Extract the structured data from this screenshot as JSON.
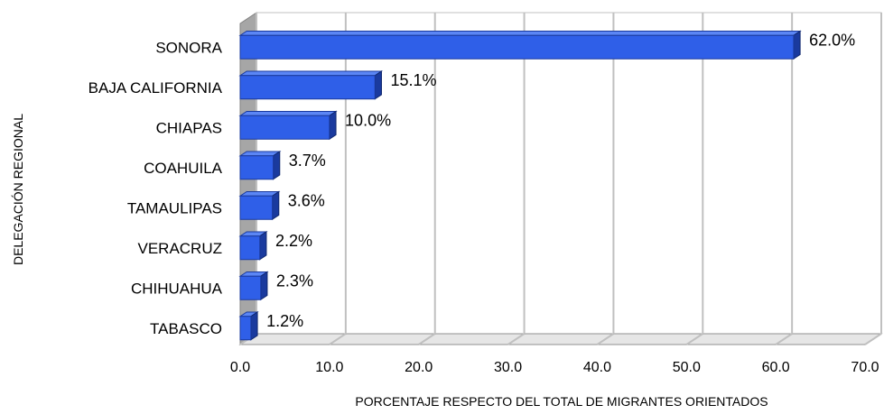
{
  "chart_data": {
    "type": "bar",
    "orientation": "horizontal",
    "style": "3d",
    "categories": [
      "SONORA",
      "BAJA CALIFORNIA",
      "CHIAPAS",
      "COAHUILA",
      "TAMAULIPAS",
      "VERACRUZ",
      "CHIHUAHUA",
      "TABASCO"
    ],
    "values": [
      62.0,
      15.1,
      10.0,
      3.7,
      3.6,
      2.2,
      2.3,
      1.2
    ],
    "value_labels": [
      "62.0%",
      "15.1%",
      "10.0%",
      "3.7%",
      "3.6%",
      "2.2%",
      "2.3%",
      "1.2%"
    ],
    "xlabel": "PORCENTAJE RESPECTO DEL TOTAL DE MIGRANTES ORIENTADOS",
    "ylabel": "DELEGACIÓN REGIONAL",
    "xlim": [
      0,
      70
    ],
    "xticks": [
      "0.0",
      "10.0",
      "20.0",
      "30.0",
      "40.0",
      "50.0",
      "60.0",
      "70.0"
    ],
    "grid": "vertical",
    "legend": "none",
    "colors": {
      "bar_front": "#2f5fe8",
      "bar_top": "#5b86f5",
      "bar_side": "#1a3a9e",
      "floor": "#a6a6a6",
      "grid": "#c0c0c0"
    }
  }
}
